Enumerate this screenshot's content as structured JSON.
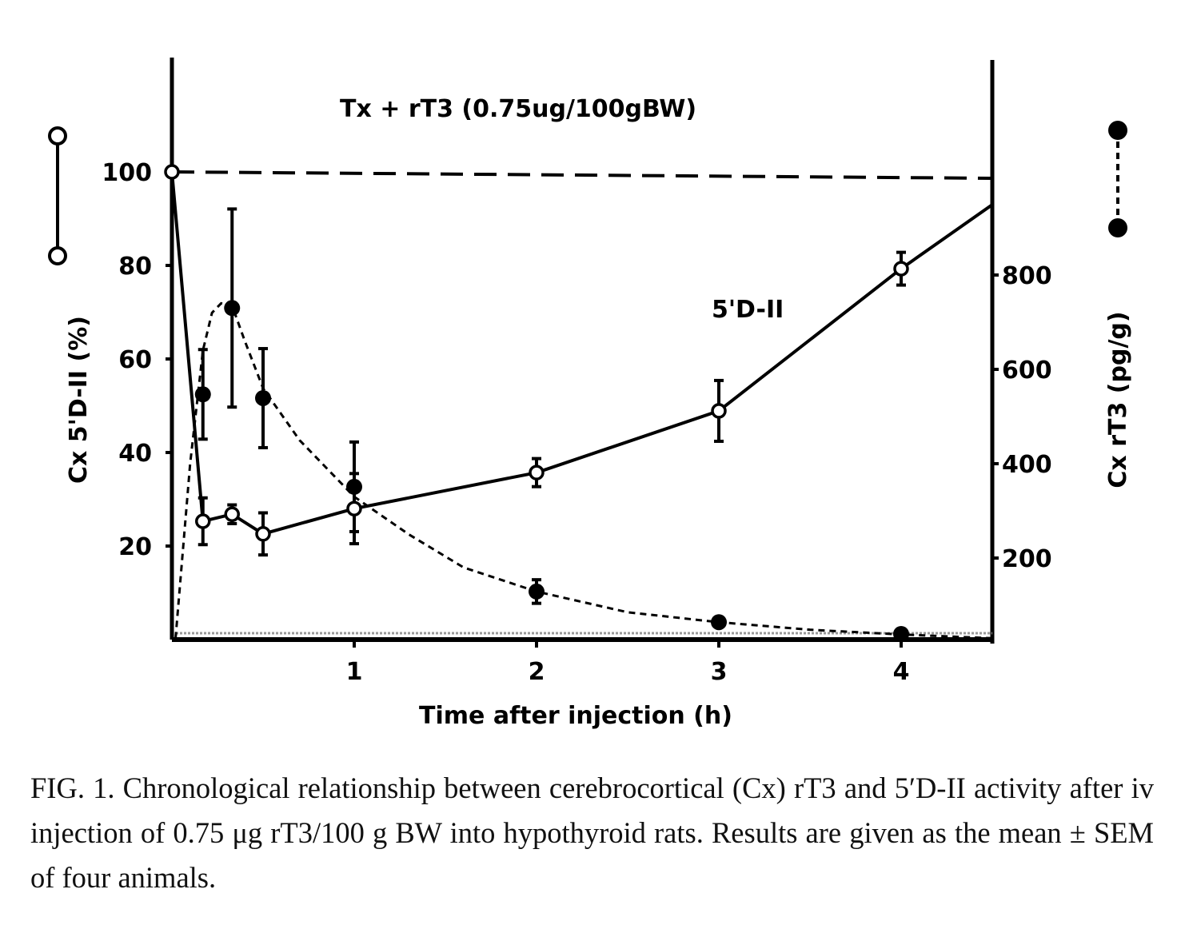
{
  "chart_data": {
    "type": "line",
    "title": "Tx + rT3 (0.75ug/100gBW)",
    "xlabel": "Time after injection (h)",
    "ylabel_left": "Cx 5'D-II (%)",
    "ylabel_right": "Cx rT3 (pg/g)",
    "xlim": [
      0,
      4.5
    ],
    "ylim_left": [
      0,
      120
    ],
    "ylim_right": [
      0,
      1200
    ],
    "x_ticks": [
      1,
      2,
      3,
      4
    ],
    "y_ticks_left": [
      20,
      40,
      60,
      80,
      100
    ],
    "y_ticks_right": [
      200,
      400,
      600,
      800
    ],
    "annotation": "5'D-II",
    "grid": false,
    "legend": "left and right margins (open circles solid line = left axis; filled circles dotted line = right axis)",
    "colors": {
      "ink": "#000000"
    },
    "control_line": {
      "axis": "left",
      "value": 100,
      "style": "dashed"
    },
    "series": [
      {
        "axis": "left",
        "marker": "open-circle",
        "style": "solid",
        "x": [
          0,
          0.17,
          0.33,
          0.5,
          1,
          2,
          3,
          4
        ],
        "y": [
          100,
          25.3,
          26.8,
          22.6,
          28,
          35.7,
          48.9,
          79.3
        ],
        "sem": [
          0,
          5,
          2,
          4.5,
          7.5,
          3,
          6.5,
          3.5
        ],
        "line_extends_to": {
          "x": 4.5,
          "y": 93
        }
      },
      {
        "axis": "right",
        "marker": "filled-circle",
        "style": "dotted",
        "x": [
          0.17,
          0.33,
          0.5,
          1,
          2,
          3,
          4
        ],
        "y": [
          547,
          730,
          539,
          351,
          129,
          64,
          39
        ],
        "sem": [
          95,
          210,
          105,
          95,
          25,
          0,
          0
        ],
        "curve": {
          "x": [
            0.02,
            0.1,
            0.17,
            0.22,
            0.27,
            0.33,
            0.4,
            0.5,
            0.7,
            1,
            1.3,
            1.6,
            2,
            2.5,
            3,
            3.5,
            4,
            4.5
          ],
          "y": [
            30,
            400,
            640,
            720,
            740,
            735,
            660,
            560,
            450,
            330,
            250,
            180,
            129,
            85,
            64,
            48,
            38,
            30
          ]
        }
      }
    ]
  },
  "caption": {
    "label": "FIG. 1.",
    "text": "Chronological relationship between cerebrocortical (Cx) rT3 and 5′D-II activity after iv injection of 0.75 μg rT3/100 g BW into hypothyroid rats. Results are given as the mean ± SEM of four animals."
  }
}
